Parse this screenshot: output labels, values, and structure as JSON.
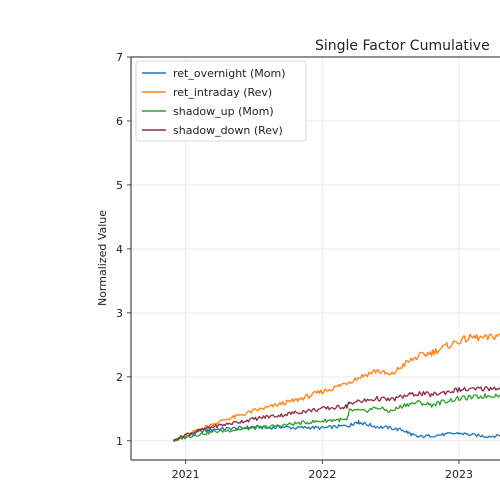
{
  "chart_data": {
    "type": "line",
    "title": "Single Factor Cumulative",
    "xlabel": "",
    "ylabel": "Normalized Value",
    "xlim": [
      2020.6,
      2023.3
    ],
    "ylim": [
      0.7,
      7.0
    ],
    "yticks": [
      1,
      2,
      3,
      4,
      5,
      6,
      7
    ],
    "xticks": [
      {
        "value": 2021.0,
        "label": "2021"
      },
      {
        "value": 2022.0,
        "label": "2022"
      },
      {
        "value": 2023.0,
        "label": "2023"
      }
    ],
    "grid": true,
    "legend_position": "top-left",
    "series": [
      {
        "name": "ret_overnight (Mom)",
        "color": "#1f77b4",
        "points": [
          [
            2020.91,
            1.0
          ],
          [
            2021.0,
            1.06
          ],
          [
            2021.1,
            1.14
          ],
          [
            2021.2,
            1.18
          ],
          [
            2021.3,
            1.19
          ],
          [
            2021.4,
            1.2
          ],
          [
            2021.5,
            1.22
          ],
          [
            2021.6,
            1.2
          ],
          [
            2021.7,
            1.22
          ],
          [
            2021.8,
            1.2
          ],
          [
            2021.9,
            1.21
          ],
          [
            2022.0,
            1.2
          ],
          [
            2022.1,
            1.22
          ],
          [
            2022.2,
            1.24
          ],
          [
            2022.25,
            1.3
          ],
          [
            2022.3,
            1.27
          ],
          [
            2022.4,
            1.22
          ],
          [
            2022.5,
            1.2
          ],
          [
            2022.6,
            1.16
          ],
          [
            2022.65,
            1.1
          ],
          [
            2022.7,
            1.06
          ],
          [
            2022.8,
            1.08
          ],
          [
            2022.9,
            1.1
          ],
          [
            2023.0,
            1.12
          ],
          [
            2023.1,
            1.09
          ],
          [
            2023.2,
            1.07
          ],
          [
            2023.3,
            1.08
          ]
        ]
      },
      {
        "name": "ret_intraday (Rev)",
        "color": "#ff7f0e",
        "points": [
          [
            2020.91,
            1.0
          ],
          [
            2021.0,
            1.08
          ],
          [
            2021.1,
            1.18
          ],
          [
            2021.2,
            1.26
          ],
          [
            2021.3,
            1.34
          ],
          [
            2021.4,
            1.4
          ],
          [
            2021.5,
            1.47
          ],
          [
            2021.6,
            1.52
          ],
          [
            2021.7,
            1.58
          ],
          [
            2021.8,
            1.63
          ],
          [
            2021.9,
            1.7
          ],
          [
            2022.0,
            1.77
          ],
          [
            2022.1,
            1.84
          ],
          [
            2022.2,
            1.93
          ],
          [
            2022.3,
            2.02
          ],
          [
            2022.4,
            2.1
          ],
          [
            2022.5,
            2.02
          ],
          [
            2022.6,
            2.2
          ],
          [
            2022.7,
            2.32
          ],
          [
            2022.8,
            2.38
          ],
          [
            2022.9,
            2.47
          ],
          [
            2023.0,
            2.56
          ],
          [
            2023.1,
            2.62
          ],
          [
            2023.2,
            2.6
          ],
          [
            2023.3,
            2.66
          ]
        ]
      },
      {
        "name": "shadow_up (Mom)",
        "color": "#2ca02c",
        "points": [
          [
            2020.91,
            1.0
          ],
          [
            2021.0,
            1.06
          ],
          [
            2021.1,
            1.1
          ],
          [
            2021.2,
            1.14
          ],
          [
            2021.3,
            1.16
          ],
          [
            2021.4,
            1.18
          ],
          [
            2021.5,
            1.2
          ],
          [
            2021.6,
            1.22
          ],
          [
            2021.7,
            1.24
          ],
          [
            2021.8,
            1.27
          ],
          [
            2021.9,
            1.29
          ],
          [
            2022.0,
            1.31
          ],
          [
            2022.1,
            1.33
          ],
          [
            2022.18,
            1.32
          ],
          [
            2022.2,
            1.48
          ],
          [
            2022.3,
            1.46
          ],
          [
            2022.4,
            1.52
          ],
          [
            2022.5,
            1.46
          ],
          [
            2022.6,
            1.56
          ],
          [
            2022.7,
            1.6
          ],
          [
            2022.8,
            1.56
          ],
          [
            2022.9,
            1.62
          ],
          [
            2023.0,
            1.66
          ],
          [
            2023.1,
            1.68
          ],
          [
            2023.2,
            1.7
          ],
          [
            2023.3,
            1.72
          ]
        ]
      },
      {
        "name": "shadow_down (Rev)",
        "color": "#8c2d3e",
        "points": [
          [
            2020.91,
            1.0
          ],
          [
            2021.0,
            1.1
          ],
          [
            2021.1,
            1.16
          ],
          [
            2021.2,
            1.22
          ],
          [
            2021.3,
            1.26
          ],
          [
            2021.4,
            1.3
          ],
          [
            2021.5,
            1.34
          ],
          [
            2021.6,
            1.38
          ],
          [
            2021.7,
            1.4
          ],
          [
            2021.8,
            1.44
          ],
          [
            2021.9,
            1.47
          ],
          [
            2022.0,
            1.5
          ],
          [
            2022.1,
            1.52
          ],
          [
            2022.18,
            1.54
          ],
          [
            2022.2,
            1.6
          ],
          [
            2022.3,
            1.62
          ],
          [
            2022.4,
            1.66
          ],
          [
            2022.5,
            1.64
          ],
          [
            2022.6,
            1.7
          ],
          [
            2022.7,
            1.74
          ],
          [
            2022.8,
            1.72
          ],
          [
            2022.9,
            1.76
          ],
          [
            2023.0,
            1.8
          ],
          [
            2023.1,
            1.8
          ],
          [
            2023.2,
            1.82
          ],
          [
            2023.3,
            1.83
          ]
        ]
      }
    ]
  }
}
